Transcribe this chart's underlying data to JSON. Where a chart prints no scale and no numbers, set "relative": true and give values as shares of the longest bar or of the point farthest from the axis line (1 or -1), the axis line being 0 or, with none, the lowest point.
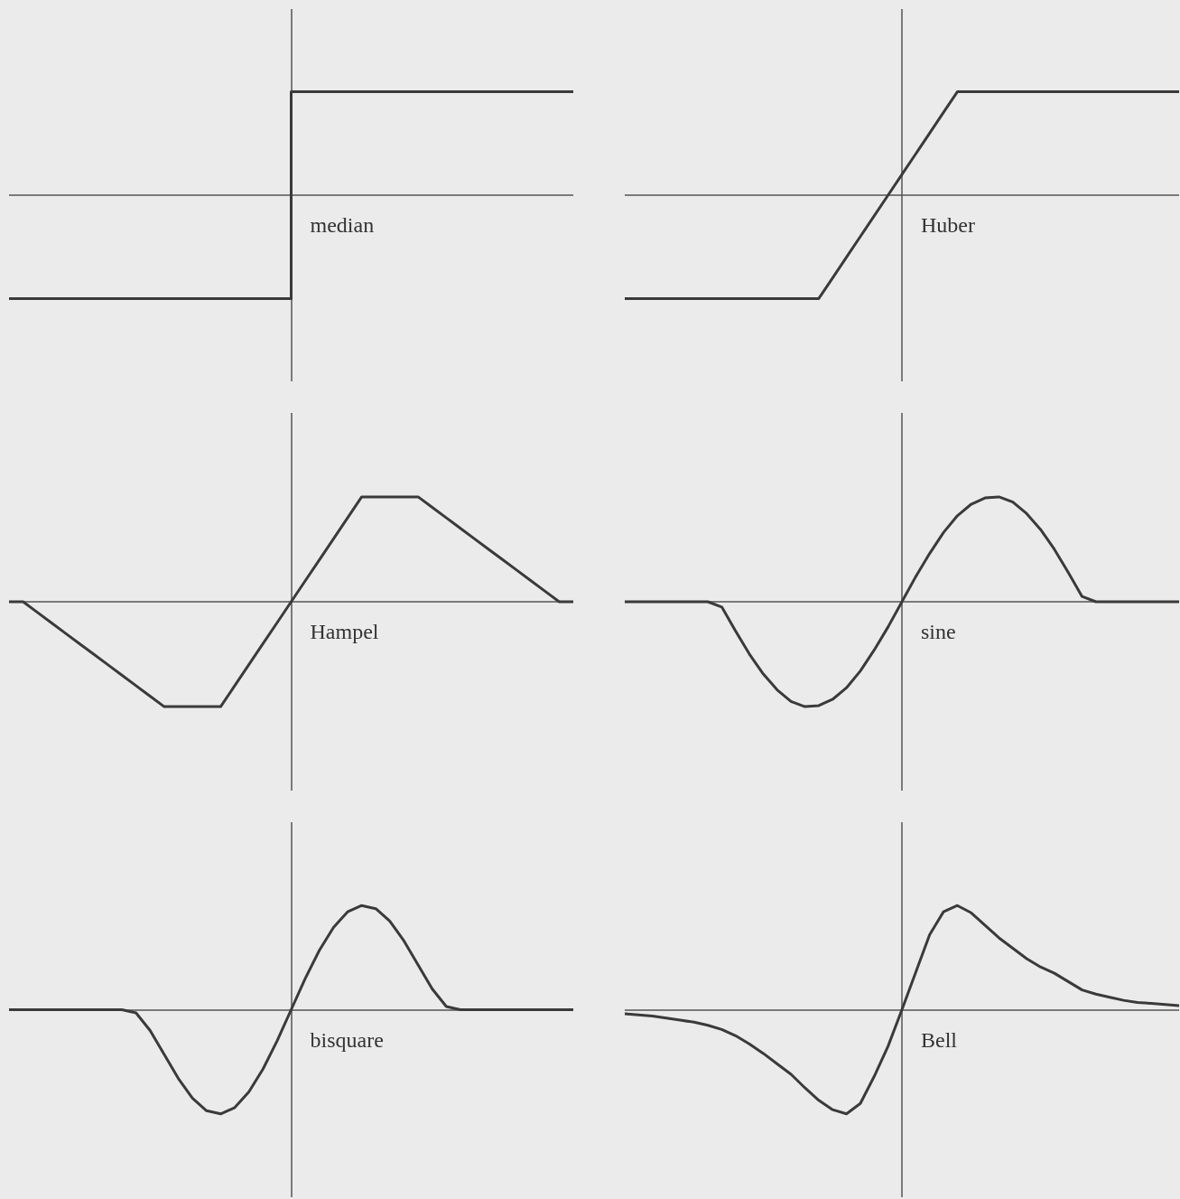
{
  "chart_data": [
    {
      "type": "step",
      "title": "median",
      "relative": true,
      "color": "#3a3a3a",
      "categories": [
        null,
        null,
        null
      ],
      "values": [
        -1,
        1,
        1
      ]
    },
    {
      "type": "line",
      "title": "Huber",
      "relative": true,
      "color": "#3a3a3a",
      "categories": [
        null,
        null,
        null,
        null,
        null,
        null,
        null,
        null,
        null,
        null,
        null,
        null,
        null,
        null,
        null,
        null,
        null,
        null,
        null,
        null,
        null,
        null,
        null,
        null,
        null,
        null,
        null,
        null,
        null,
        null,
        null,
        null,
        null,
        null,
        null,
        null,
        null,
        null,
        null,
        null,
        null
      ],
      "values": [
        -1,
        -1,
        -1,
        -1,
        -1,
        -1,
        -1,
        -1,
        -1,
        -1,
        -1,
        -1,
        -1,
        -1,
        -1,
        -0.8,
        -0.6,
        -0.4,
        -0.2,
        0,
        0.2,
        0.4,
        0.6,
        0.8,
        1,
        1,
        1,
        1,
        1,
        1,
        1,
        1,
        1,
        1,
        1,
        1,
        1,
        1,
        1,
        1,
        1
      ]
    },
    {
      "type": "line",
      "title": "Hampel",
      "relative": true,
      "color": "#3a3a3a",
      "categories": [
        null,
        null,
        null,
        null,
        null,
        null,
        null,
        null,
        null,
        null,
        null,
        null,
        null,
        null,
        null,
        null,
        null,
        null,
        null,
        null,
        null,
        null,
        null,
        null,
        null,
        null,
        null,
        null,
        null,
        null,
        null,
        null,
        null,
        null,
        null,
        null,
        null,
        null,
        null,
        null,
        null
      ],
      "values": [
        0,
        0,
        -0.1,
        -0.2,
        -0.3,
        -0.4,
        -0.5,
        -0.6,
        -0.7,
        -0.8,
        -0.9,
        -1,
        -1,
        -1,
        -1,
        -1,
        -0.8,
        -0.6,
        -0.4,
        -0.2,
        0,
        0.2,
        0.4,
        0.6,
        0.8,
        1,
        1,
        1,
        1,
        1,
        0.9,
        0.8,
        0.7,
        0.6,
        0.5,
        0.4,
        0.3,
        0.2,
        0.1,
        0,
        0
      ]
    },
    {
      "type": "line",
      "title": "sine",
      "relative": true,
      "color": "#3a3a3a",
      "categories": [
        null,
        null,
        null,
        null,
        null,
        null,
        null,
        null,
        null,
        null,
        null,
        null,
        null,
        null,
        null,
        null,
        null,
        null,
        null,
        null,
        null,
        null,
        null,
        null,
        null,
        null,
        null,
        null,
        null,
        null,
        null,
        null,
        null,
        null,
        null,
        null,
        null,
        null,
        null,
        null,
        null
      ],
      "values": [
        0,
        0,
        0,
        0,
        0,
        0,
        0,
        -0.05,
        -0.28,
        -0.5,
        -0.69,
        -0.84,
        -0.95,
        -1,
        -0.99,
        -0.93,
        -0.82,
        -0.66,
        -0.46,
        -0.24,
        0,
        0.24,
        0.46,
        0.66,
        0.82,
        0.93,
        0.99,
        1,
        0.95,
        0.84,
        0.69,
        0.5,
        0.28,
        0.05,
        0,
        0,
        0,
        0,
        0,
        0,
        0
      ]
    },
    {
      "type": "line",
      "title": "bisquare",
      "relative": true,
      "color": "#3a3a3a",
      "categories": [
        null,
        null,
        null,
        null,
        null,
        null,
        null,
        null,
        null,
        null,
        null,
        null,
        null,
        null,
        null,
        null,
        null,
        null,
        null,
        null,
        null,
        null,
        null,
        null,
        null,
        null,
        null,
        null,
        null,
        null,
        null,
        null,
        null,
        null,
        null,
        null,
        null,
        null,
        null,
        null,
        null
      ],
      "values": [
        0,
        0,
        0,
        0,
        0,
        0,
        0,
        0,
        0,
        -0.03,
        -0.2,
        -0.43,
        -0.66,
        -0.85,
        -0.97,
        -1,
        -0.94,
        -0.79,
        -0.57,
        -0.3,
        0,
        0.3,
        0.57,
        0.79,
        0.94,
        1,
        0.97,
        0.85,
        0.66,
        0.43,
        0.2,
        0.03,
        0,
        0,
        0,
        0,
        0,
        0,
        0,
        0,
        0
      ]
    },
    {
      "type": "line",
      "title": "Bell",
      "relative": true,
      "color": "#3a3a3a",
      "categories": [
        null,
        null,
        null,
        null,
        null,
        null,
        null,
        null,
        null,
        null,
        null,
        null,
        null,
        null,
        null,
        null,
        null,
        null,
        null,
        null,
        null,
        null,
        null,
        null,
        null,
        null,
        null,
        null,
        null,
        null,
        null,
        null,
        null,
        null,
        null,
        null,
        null,
        null,
        null,
        null,
        null
      ],
      "values": [
        -0.04,
        -0.05,
        -0.06,
        -0.08,
        -0.1,
        -0.12,
        -0.15,
        -0.19,
        -0.25,
        -0.33,
        -0.42,
        -0.52,
        -0.62,
        -0.75,
        -0.87,
        -0.96,
        -1,
        -0.9,
        -0.64,
        -0.35,
        0,
        0.36,
        0.72,
        0.94,
        1,
        0.93,
        0.81,
        0.69,
        0.59,
        0.49,
        0.41,
        0.35,
        0.27,
        0.19,
        0.15,
        0.12,
        0.09,
        0.07,
        0.06,
        0.05,
        0.04
      ]
    }
  ]
}
